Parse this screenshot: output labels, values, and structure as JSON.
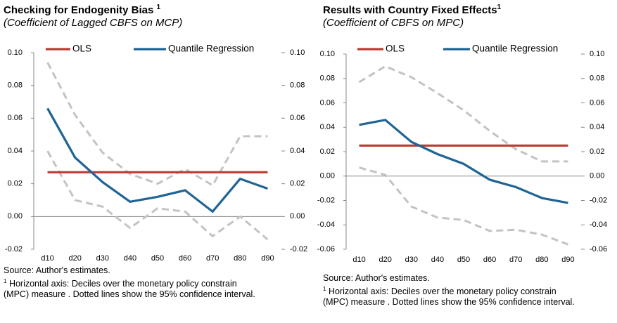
{
  "chart_data": [
    {
      "type": "line",
      "title": "Checking for Endogenity Bias",
      "title_note": "1",
      "subtitle": "(Coefficient  of Lagged CBFS on MCP)",
      "categories": [
        "d10",
        "d20",
        "d30",
        "d40",
        "d50",
        "d60",
        "d70",
        "d80",
        "d90"
      ],
      "series": [
        {
          "name": "OLS",
          "color": "#be3a34",
          "values": [
            0.027,
            0.027,
            0.027,
            0.027,
            0.027,
            0.027,
            0.027,
            0.027,
            0.027
          ]
        },
        {
          "name": "Quantile Regression",
          "color": "#1f6494",
          "values": [
            0.066,
            0.036,
            0.021,
            0.009,
            0.012,
            0.016,
            0.003,
            0.023,
            0.017
          ]
        },
        {
          "color": "#c3c3c3",
          "dashed": true,
          "values": [
            0.094,
            0.062,
            0.039,
            0.026,
            0.02,
            0.029,
            0.019,
            0.049,
            0.049
          ]
        },
        {
          "color": "#c3c3c3",
          "dashed": true,
          "values": [
            0.04,
            0.01,
            0.006,
            -0.007,
            0.005,
            0.003,
            -0.012,
            0.0,
            -0.014
          ]
        }
      ],
      "ylim": [
        -0.02,
        0.1
      ],
      "yticks": [
        {
          "value": -0.02,
          "label": "-0.02"
        },
        {
          "value": 0,
          "label": "0.00"
        },
        {
          "value": 0.02,
          "label": "0.02"
        },
        {
          "value": 0.04,
          "label": "0.04"
        },
        {
          "value": 0.06,
          "label": "0.06"
        },
        {
          "value": 0.08,
          "label": "0.08"
        },
        {
          "value": 0.1,
          "label": "0.10"
        }
      ],
      "source": "Source: Author's estimates.",
      "note_marker": "1",
      "note": "Horizontal axis:  Deciles over the monetary  policy constrain (MPC) measure . Dotted lines show the 95% confidence interval."
    },
    {
      "type": "line",
      "title": "Results with Country Fixed Effects",
      "title_note": "1",
      "subtitle": "(Coefficient  of CBFS on MPC)",
      "categories": [
        "d10",
        "d20",
        "d30",
        "d40",
        "d50",
        "d60",
        "d70",
        "d80",
        "d90"
      ],
      "series": [
        {
          "name": "OLS",
          "color": "#be3a34",
          "values": [
            0.025,
            0.025,
            0.025,
            0.025,
            0.025,
            0.025,
            0.025,
            0.025,
            0.025
          ]
        },
        {
          "name": "Quantile Regression",
          "color": "#1f6494",
          "values": [
            0.042,
            0.046,
            0.028,
            0.018,
            0.01,
            -0.003,
            -0.009,
            -0.018,
            -0.022
          ]
        },
        {
          "color": "#c3c3c3",
          "dashed": true,
          "values": [
            0.077,
            0.09,
            0.081,
            0.068,
            0.054,
            0.037,
            0.022,
            0.012,
            0.012
          ]
        },
        {
          "color": "#c3c3c3",
          "dashed": true,
          "values": [
            0.007,
            0.001,
            -0.025,
            -0.034,
            -0.036,
            -0.045,
            -0.044,
            -0.048,
            -0.056
          ]
        }
      ],
      "ylim": [
        -0.06,
        0.1
      ],
      "yticks": [
        {
          "value": -0.06,
          "label": "-0.06"
        },
        {
          "value": -0.04,
          "label": "-0.04"
        },
        {
          "value": -0.02,
          "label": "-0.02"
        },
        {
          "value": 0,
          "label": "0.00"
        },
        {
          "value": 0.02,
          "label": "0.02"
        },
        {
          "value": 0.04,
          "label": "0.04"
        },
        {
          "value": 0.06,
          "label": "0.06"
        },
        {
          "value": 0.08,
          "label": "0.08"
        },
        {
          "value": 0.1,
          "label": "0.10"
        }
      ],
      "source": "Source: Author's estimates.",
      "note_marker": "1",
      "note": "Horizontal axis:  Deciles over the monetary  policy constrain (MPC) measure . Dotted lines show the 95% confidence interval."
    }
  ]
}
